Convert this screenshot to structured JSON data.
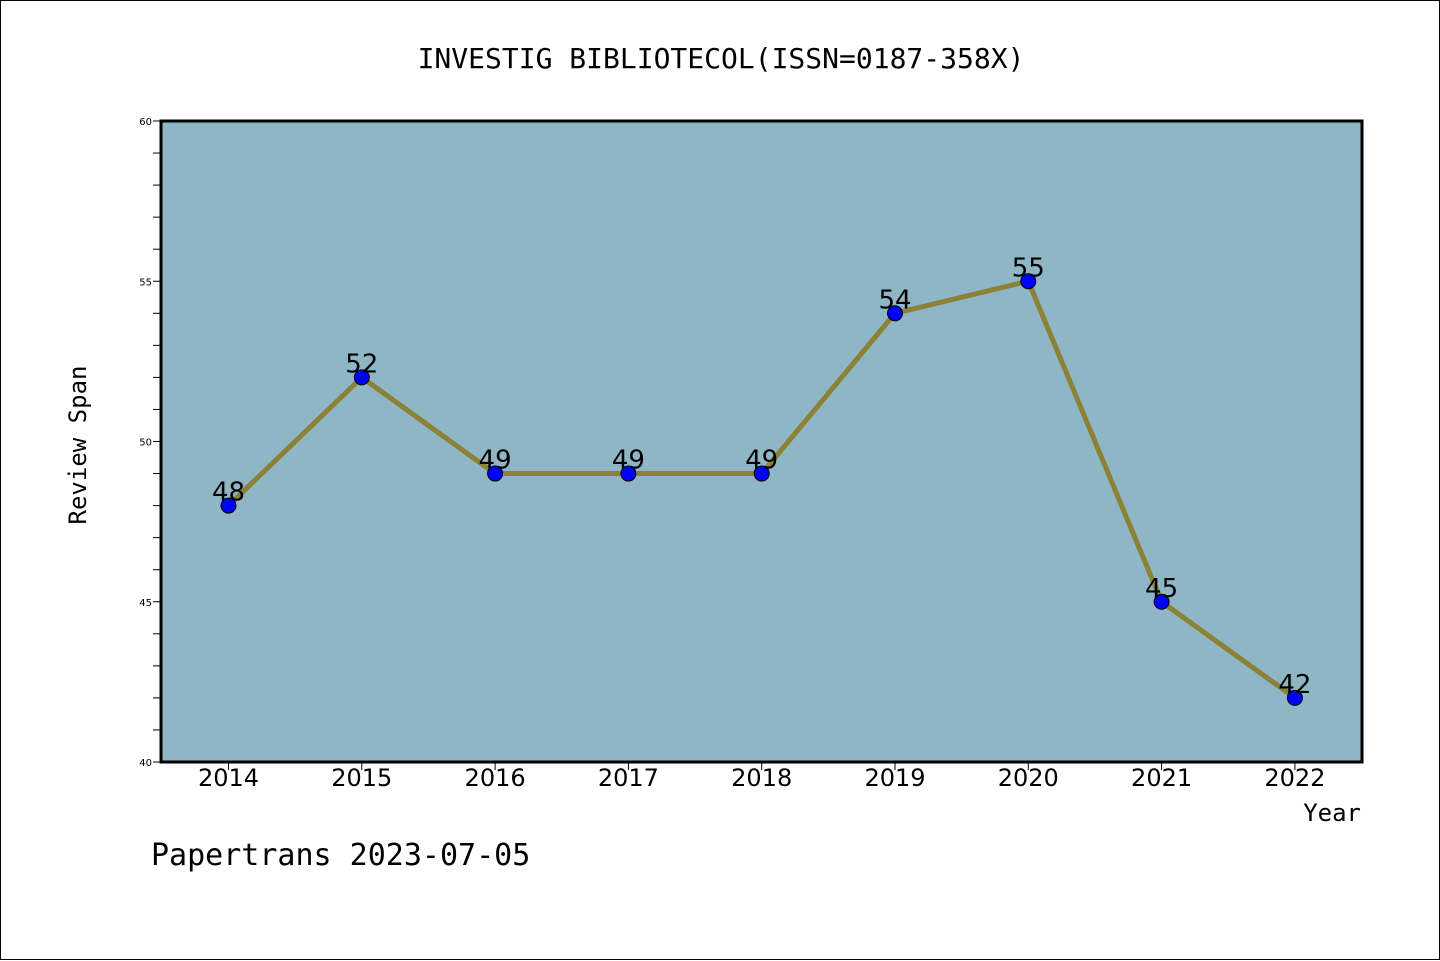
{
  "chart_data": {
    "type": "line",
    "title": "INVESTIG BIBLIOTECOL(ISSN=0187-358X)",
    "xlabel": "Year",
    "ylabel": "Review Span",
    "categories": [
      "2014",
      "2015",
      "2016",
      "2017",
      "2018",
      "2019",
      "2020",
      "2021",
      "2022"
    ],
    "series": [
      {
        "values": [
          48,
          52,
          49,
          49,
          49,
          54,
          55,
          45,
          42
        ]
      }
    ],
    "data_labels": [
      "48",
      "52",
      "49",
      "49",
      "49",
      "54",
      "55",
      "45",
      "42"
    ],
    "ylim": [
      40,
      60
    ],
    "yticks": [
      "40",
      "45",
      "50",
      "55",
      "60"
    ],
    "grid": false,
    "legend": "none",
    "colors": {
      "plot_background": "#8fb6c4",
      "line": "#8b8137",
      "marker": "#0000ff"
    }
  },
  "footer": {
    "text": "Papertrans 2023-07-05"
  }
}
